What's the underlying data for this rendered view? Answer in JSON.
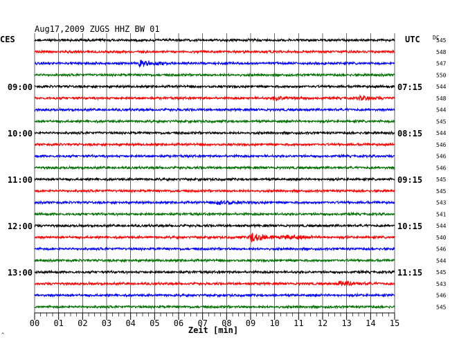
{
  "chart_data": {
    "type": "line",
    "title": "Aug17,2009   ZUGS HHZ BW 01",
    "left_timezone": "CES",
    "right_timezone": "UTC",
    "dc_header": "DC",
    "xlabel": "Zeit [min]",
    "x_ticks": [
      "00",
      "01",
      "02",
      "03",
      "04",
      "05",
      "06",
      "07",
      "08",
      "09",
      "10",
      "11",
      "12",
      "13",
      "14",
      "15"
    ],
    "xlim": [
      0,
      15
    ],
    "left_time_labels": [
      {
        "row": 4,
        "text": "09:00"
      },
      {
        "row": 8,
        "text": "10:00"
      },
      {
        "row": 12,
        "text": "11:00"
      },
      {
        "row": 16,
        "text": "12:00"
      },
      {
        "row": 20,
        "text": "13:00"
      }
    ],
    "right_time_labels": [
      {
        "row": 4,
        "text": "07:15"
      },
      {
        "row": 8,
        "text": "08:15"
      },
      {
        "row": 12,
        "text": "09:15"
      },
      {
        "row": 16,
        "text": "10:15"
      },
      {
        "row": 20,
        "text": "11:15"
      }
    ],
    "dc_values": [
      "545",
      "548",
      "547",
      "550",
      "544",
      "548",
      "544",
      "545",
      "544",
      "546",
      "546",
      "546",
      "545",
      "545",
      "543",
      "541",
      "544",
      "540",
      "546",
      "544",
      "545",
      "543",
      "546",
      "545"
    ],
    "trace_colors": [
      "#000000",
      "#ff0000",
      "#0000ff",
      "#007000"
    ],
    "events": [
      {
        "row": 2,
        "minute": 4.4,
        "amplitude": 4
      },
      {
        "row": 5,
        "minute": 10.0,
        "amplitude": 3
      },
      {
        "row": 5,
        "minute": 13.5,
        "amplitude": 2
      },
      {
        "row": 14,
        "minute": 7.6,
        "amplitude": 3
      },
      {
        "row": 17,
        "minute": 9.0,
        "amplitude": 6
      },
      {
        "row": 17,
        "minute": 10.5,
        "amplitude": 3
      },
      {
        "row": 21,
        "minute": 12.7,
        "amplitude": 3
      }
    ],
    "grid": true,
    "corner_mark": "^"
  }
}
